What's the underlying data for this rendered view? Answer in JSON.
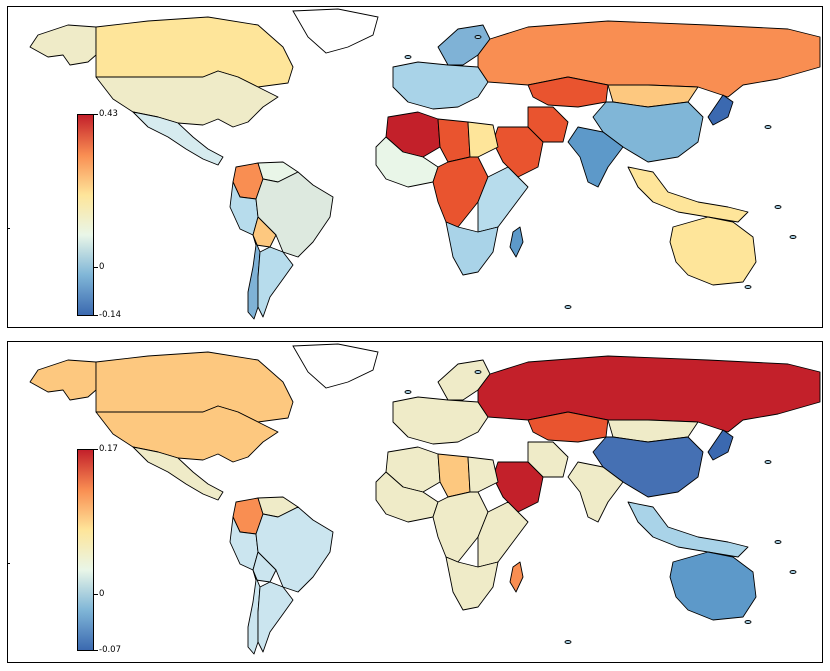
{
  "figure": {
    "panels": [
      {
        "id": "top",
        "colorbar": {
          "max_label": "0.43",
          "zero_label": "0",
          "min_label": "-0.14",
          "max": 0.43,
          "min": -0.14
        },
        "regions": {
          "north_america_canada": "#fee59a",
          "north_america_usa": "#efebc8",
          "alaska": "#efebc8",
          "mexico_central": "#d6ebef",
          "greenland": "#ffffff",
          "colombia": "#f98e52",
          "venezuela": "#e9f6e8",
          "brazil": "#dde9df",
          "peru": "#b7dcec",
          "bolivia": "#fdc87f",
          "argentina": "#b7dcec",
          "chile": "#7fb2d6",
          "russia": "#f98e52",
          "kazakhstan": "#e9542f",
          "mongolia": "#fdc87f",
          "china": "#80b6d7",
          "india": "#5d99c9",
          "iran": "#e9542f",
          "saudi": "#e9542f",
          "europe_west": "#a9d3e8",
          "scandinavia": "#7fb2d6",
          "north_africa_algeria": "#c3202a",
          "libya": "#e9542f",
          "egypt": "#fee59a",
          "west_africa": "#e9f6e8",
          "central_africa": "#e9542f",
          "east_africa": "#b7dcec",
          "southern_africa": "#a9d3e8",
          "madagascar": "#5d99c9",
          "australia": "#fee59a",
          "se_asia": "#fee59a",
          "japan": "#3b69b0"
        }
      },
      {
        "id": "bottom",
        "colorbar": {
          "max_label": "0.17",
          "zero_label": "0",
          "min_label": "-0.07",
          "max": 0.17,
          "min": -0.07
        },
        "regions": {
          "north_america_canada": "#fdc87f",
          "north_america_usa": "#fdc87f",
          "alaska": "#fdc87f",
          "mexico_central": "#efebc8",
          "greenland": "#ffffff",
          "colombia": "#f98e52",
          "venezuela": "#efebc8",
          "brazil": "#cbe5ef",
          "peru": "#cbe5ef",
          "bolivia": "#cbe5ef",
          "argentina": "#cbe5ef",
          "chile": "#cbe5ef",
          "russia": "#c3202a",
          "kazakhstan": "#e9542f",
          "mongolia": "#efebc8",
          "china": "#4570b3",
          "india": "#efebc8",
          "iran": "#efebc8",
          "saudi": "#c3202a",
          "europe_west": "#efebc8",
          "scandinavia": "#efebc8",
          "north_africa_algeria": "#efebc8",
          "libya": "#fdc87f",
          "egypt": "#efebc8",
          "west_africa": "#efebc8",
          "central_africa": "#efebc8",
          "east_africa": "#efebc8",
          "southern_africa": "#efebc8",
          "madagascar": "#f98e52",
          "australia": "#5d99c9",
          "se_asia": "#a9d3e8",
          "japan": "#3b69b0"
        }
      }
    ],
    "colormap": [
      "#3b69b0",
      "#80b6d7",
      "#e9f6e8",
      "#fee59a",
      "#f98e52",
      "#c3202a"
    ]
  }
}
